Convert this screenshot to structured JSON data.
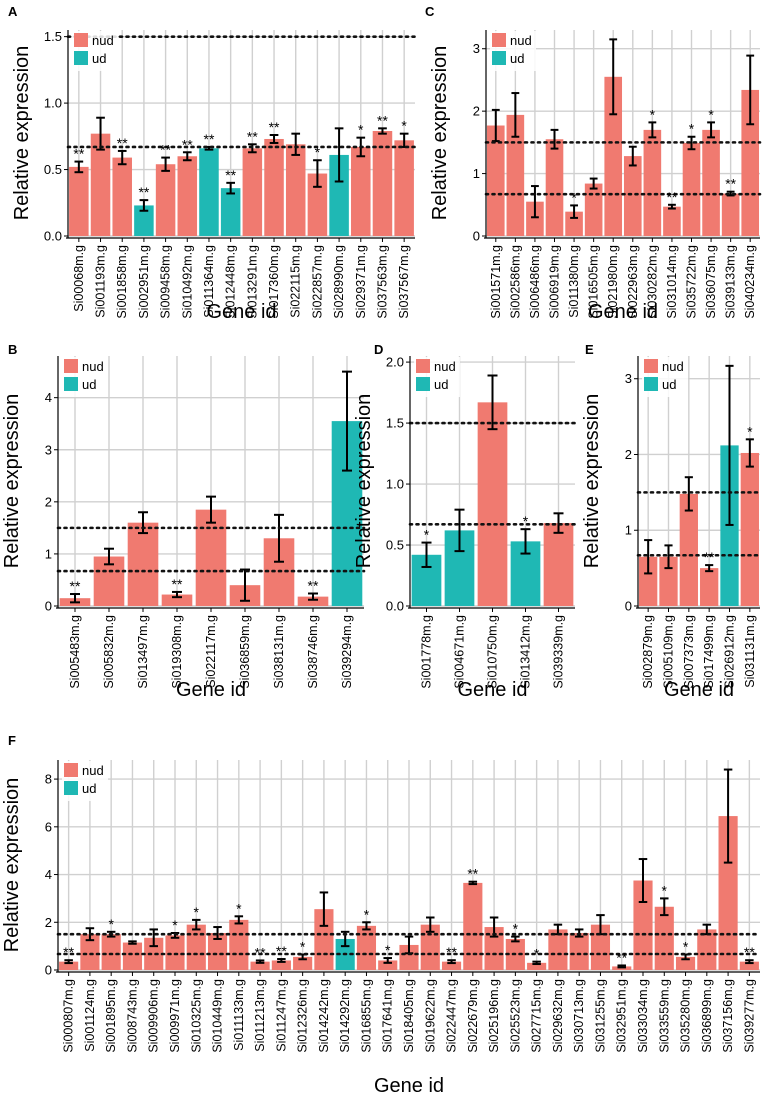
{
  "colors": {
    "nud": "#f07a70",
    "ud": "#1fb8b4",
    "grid": "#d0d0d0",
    "axis": "#000000"
  },
  "chart_data": [
    {
      "panel": "A",
      "type": "bar",
      "xlabel": "Gene id",
      "ylabel": "Relative expression",
      "ylim": [
        0,
        1.55
      ],
      "yticks": [
        0.0,
        0.5,
        1.0,
        1.5
      ],
      "tickLabels": [
        "0.0",
        "0.5",
        "1.0",
        "1.5"
      ],
      "thresholds": [
        0.67,
        1.5
      ],
      "legend": [
        "nud",
        "ud"
      ],
      "categories": [
        "Si00068m.g",
        "Si001193m.g",
        "Si001858m.g",
        "Si002951m.g",
        "Si009458m.g",
        "Si010492m.g",
        "Si011364m.g",
        "Si012448m.g",
        "Si013291m.g",
        "Si017360m.g",
        "Si022115m.g",
        "Si022857m.g",
        "Si028990m.g",
        "Si029371m.g",
        "Si037563m.g",
        "Si037567m.g"
      ],
      "values": [
        0.52,
        0.77,
        0.59,
        0.23,
        0.54,
        0.6,
        0.66,
        0.36,
        0.66,
        0.73,
        0.69,
        0.47,
        0.61,
        0.67,
        0.79,
        0.72
      ],
      "errors": [
        0.04,
        0.12,
        0.05,
        0.04,
        0.05,
        0.03,
        0.01,
        0.04,
        0.03,
        0.03,
        0.08,
        0.1,
        0.2,
        0.07,
        0.02,
        0.05
      ],
      "groups": [
        "nud",
        "nud",
        "nud",
        "ud",
        "nud",
        "nud",
        "ud",
        "ud",
        "nud",
        "nud",
        "nud",
        "nud",
        "ud",
        "nud",
        "nud",
        "nud"
      ],
      "sig": [
        "**",
        "",
        "**",
        "**",
        "**",
        "**",
        "**",
        "**",
        "**",
        "**",
        "",
        "*",
        "",
        "*",
        "**",
        "*"
      ]
    },
    {
      "panel": "C",
      "type": "bar",
      "xlabel": "Gene id",
      "ylabel": "Relative expression",
      "ylim": [
        0,
        3.3
      ],
      "yticks": [
        0,
        1,
        2,
        3
      ],
      "tickLabels": [
        "0",
        "1",
        "2",
        "3"
      ],
      "thresholds": [
        0.67,
        1.5
      ],
      "legend": [
        "nud",
        "ud"
      ],
      "categories": [
        "Si001571m.g",
        "Si002586m.g",
        "Si006486m.g",
        "Si006919m.g",
        "Si011380m.g",
        "Si016505m.g",
        "Si021980m.g",
        "Si022963m.g",
        "Si030282m.g",
        "Si031014m.g",
        "Si035722m.g",
        "Si036075m.g",
        "Si039133m.g",
        "Si040234m.g"
      ],
      "values": [
        1.77,
        1.94,
        0.55,
        1.55,
        0.39,
        0.84,
        2.55,
        1.28,
        1.7,
        0.47,
        1.49,
        1.7,
        0.68,
        2.34
      ],
      "errors": [
        0.25,
        0.35,
        0.25,
        0.15,
        0.1,
        0.08,
        0.6,
        0.15,
        0.12,
        0.03,
        0.1,
        0.12,
        0.03,
        0.55
      ],
      "groups": [
        "nud",
        "nud",
        "nud",
        "nud",
        "nud",
        "nud",
        "nud",
        "nud",
        "nud",
        "nud",
        "nud",
        "nud",
        "nud",
        "nud"
      ],
      "sig": [
        "",
        "",
        "",
        "",
        "*",
        "",
        "",
        "",
        "*",
        "**",
        "*",
        "*",
        "**",
        ""
      ]
    },
    {
      "panel": "B",
      "type": "bar",
      "xlabel": "Gene id",
      "ylabel": "Relative expression",
      "ylim": [
        0,
        4.8
      ],
      "yticks": [
        0,
        1,
        2,
        3,
        4
      ],
      "tickLabels": [
        "0",
        "1",
        "2",
        "3",
        "4"
      ],
      "thresholds": [
        0.67,
        1.5
      ],
      "legend": [
        "nud",
        "ud"
      ],
      "categories": [
        "Si005483m.g",
        "Si005832m.g",
        "Si013497m.g",
        "Si019308m.g",
        "Si022117m.g",
        "Si036859m.g",
        "Si038131m.g",
        "Si038746m.g",
        "Si039294m.g"
      ],
      "values": [
        0.15,
        0.95,
        1.6,
        0.22,
        1.85,
        0.4,
        1.3,
        0.18,
        3.55
      ],
      "errors": [
        0.08,
        0.15,
        0.2,
        0.05,
        0.25,
        0.3,
        0.45,
        0.06,
        0.95
      ],
      "groups": [
        "nud",
        "nud",
        "nud",
        "nud",
        "nud",
        "nud",
        "nud",
        "nud",
        "ud"
      ],
      "sig": [
        "**",
        "",
        "",
        "**",
        "",
        "",
        "",
        "**",
        ""
      ]
    },
    {
      "panel": "D",
      "type": "bar",
      "xlabel": "Gene id",
      "ylabel": "Relative expression",
      "ylim": [
        0,
        2.05
      ],
      "yticks": [
        0.0,
        0.5,
        1.0,
        1.5,
        2.0
      ],
      "tickLabels": [
        "0.0",
        "0.5",
        "1.0",
        "1.5",
        "2.0"
      ],
      "thresholds": [
        0.67,
        1.5
      ],
      "legend": [
        "nud",
        "ud"
      ],
      "categories": [
        "Si001778m.g",
        "Si004671m.g",
        "Si010750m.g",
        "Si013412m.g",
        "Si039339m.g"
      ],
      "values": [
        0.42,
        0.62,
        1.67,
        0.53,
        0.68
      ],
      "errors": [
        0.1,
        0.17,
        0.22,
        0.1,
        0.08
      ],
      "groups": [
        "ud",
        "ud",
        "nud",
        "ud",
        "nud"
      ],
      "sig": [
        "*",
        "",
        "",
        "*",
        ""
      ]
    },
    {
      "panel": "E",
      "type": "bar",
      "xlabel": "Gene id",
      "ylabel": "Relative expression",
      "ylim": [
        0,
        3.3
      ],
      "yticks": [
        0,
        1,
        2,
        3
      ],
      "tickLabels": [
        "0",
        "1",
        "2",
        "3"
      ],
      "thresholds": [
        0.67,
        1.5
      ],
      "legend": [
        "nud",
        "ud"
      ],
      "categories": [
        "Si002879m.g",
        "Si005109m.g",
        "Si007373m.g",
        "Si017499m.g",
        "Si026912m.g",
        "Si031131m.g"
      ],
      "values": [
        0.65,
        0.65,
        1.48,
        0.5,
        2.12,
        2.02
      ],
      "errors": [
        0.22,
        0.15,
        0.22,
        0.04,
        1.05,
        0.18
      ],
      "groups": [
        "nud",
        "nud",
        "nud",
        "nud",
        "ud",
        "nud"
      ],
      "sig": [
        "",
        "",
        "",
        "**",
        "",
        "*"
      ]
    },
    {
      "panel": "F",
      "type": "bar",
      "xlabel": "Gene id",
      "ylabel": "Relative expression",
      "ylim": [
        0,
        8.8
      ],
      "yticks": [
        0,
        2,
        4,
        6,
        8
      ],
      "tickLabels": [
        "0",
        "2",
        "4",
        "6",
        "8"
      ],
      "thresholds": [
        0.67,
        1.5
      ],
      "legend": [
        "nud",
        "ud"
      ],
      "categories": [
        "Si000807m.g",
        "Si001124m.g",
        "Si001895m.g",
        "Si008743m.g",
        "Si009906m.g",
        "Si009971m.g",
        "Si010325m.g",
        "Si010449m.g",
        "Si011133m.g",
        "Si011213m.g",
        "Si011247m.g",
        "Si012326m.g",
        "Si014242m.g",
        "Si014292m.g",
        "Si016855m.g",
        "Si017641m.g",
        "Si018405m.g",
        "Si019622m.g",
        "Si022447m.g",
        "Si022679m.g",
        "Si025196m.g",
        "Si025523m.g",
        "Si027715m.g",
        "Si029632m.g",
        "Si030713m.g",
        "Si031255m.g",
        "Si032951m.g",
        "Si033034m.g",
        "Si033559m.g",
        "Si035280m.g",
        "Si036899m.g",
        "Si037156m.g",
        "Si039277m.g"
      ],
      "values": [
        0.35,
        1.5,
        1.5,
        1.15,
        1.35,
        1.45,
        1.9,
        1.55,
        2.1,
        0.35,
        0.4,
        0.55,
        2.55,
        1.3,
        1.85,
        0.4,
        1.05,
        1.9,
        0.35,
        3.65,
        1.8,
        1.3,
        0.3,
        1.7,
        1.55,
        1.9,
        0.15,
        3.75,
        2.65,
        0.55,
        1.7,
        6.45,
        0.35
      ],
      "errors": [
        0.06,
        0.25,
        0.1,
        0.05,
        0.35,
        0.1,
        0.2,
        0.25,
        0.15,
        0.05,
        0.06,
        0.1,
        0.7,
        0.3,
        0.15,
        0.1,
        0.35,
        0.3,
        0.06,
        0.05,
        0.4,
        0.1,
        0.05,
        0.2,
        0.15,
        0.4,
        0.04,
        0.9,
        0.35,
        0.1,
        0.2,
        1.95,
        0.06
      ],
      "groups": [
        "nud",
        "nud",
        "nud",
        "nud",
        "nud",
        "nud",
        "nud",
        "nud",
        "nud",
        "nud",
        "nud",
        "nud",
        "nud",
        "ud",
        "nud",
        "nud",
        "nud",
        "nud",
        "nud",
        "nud",
        "nud",
        "nud",
        "nud",
        "nud",
        "nud",
        "nud",
        "nud",
        "nud",
        "nud",
        "nud",
        "nud",
        "nud",
        "nud"
      ],
      "sig": [
        "**",
        "",
        "*",
        "",
        "",
        "*",
        "*",
        "",
        "*",
        "**",
        "**",
        "*",
        "",
        "",
        "*",
        "*",
        "",
        "",
        "**",
        "**",
        "",
        "*",
        "*",
        "",
        "",
        "",
        "**",
        "",
        "*",
        "*",
        "",
        "",
        "**"
      ]
    }
  ]
}
